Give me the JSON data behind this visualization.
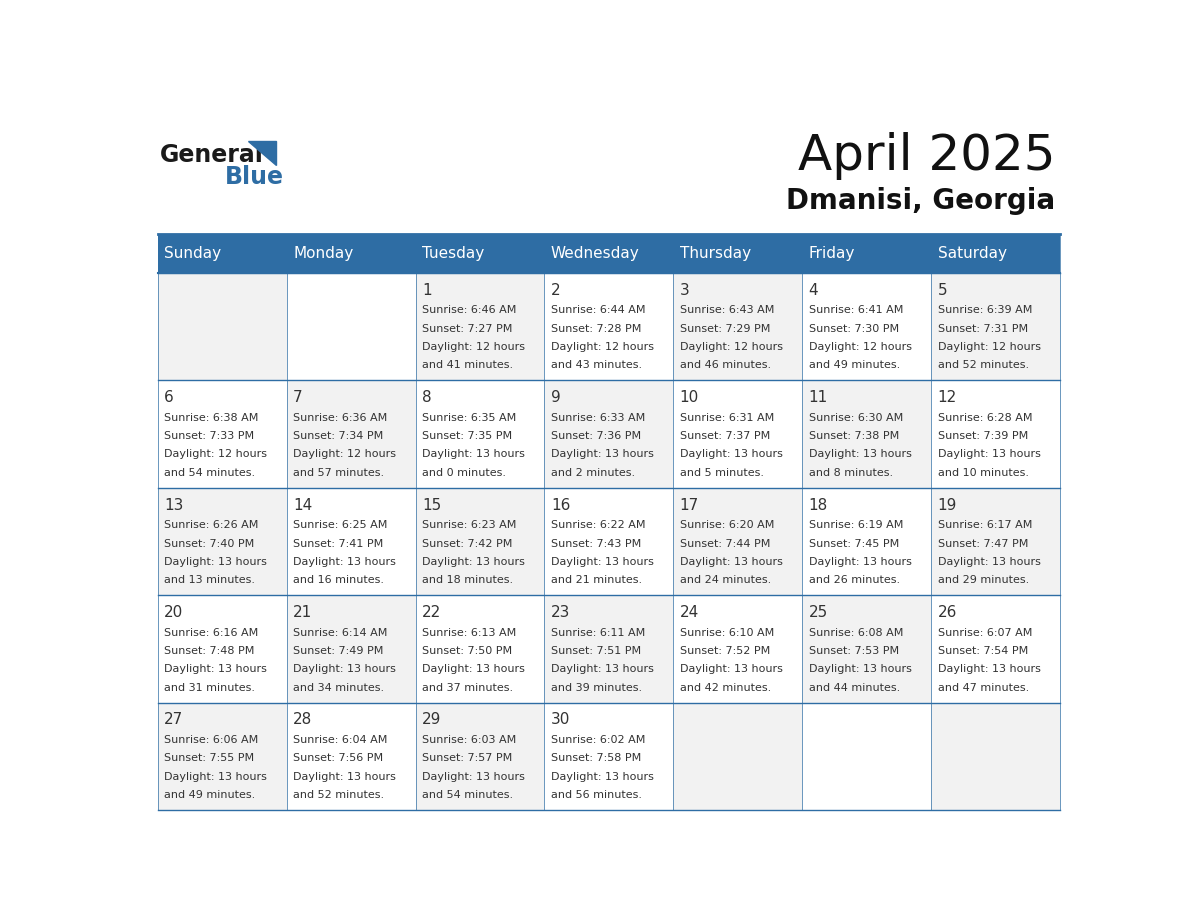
{
  "title": "April 2025",
  "subtitle": "Dmanisi, Georgia",
  "header_color": "#2E6DA4",
  "header_text_color": "#FFFFFF",
  "background_color": "#FFFFFF",
  "grid_line_color": "#2E6DA4",
  "day_headers": [
    "Sunday",
    "Monday",
    "Tuesday",
    "Wednesday",
    "Thursday",
    "Friday",
    "Saturday"
  ],
  "text_color": "#333333",
  "day_number_color": "#333333",
  "cell_bg_even": "#F2F2F2",
  "cell_bg_odd": "#FFFFFF",
  "days": [
    {
      "date": 1,
      "col": 2,
      "row": 0,
      "sunrise": "6:46 AM",
      "sunset": "7:27 PM",
      "daylight_line1": "Daylight: 12 hours",
      "daylight_line2": "and 41 minutes."
    },
    {
      "date": 2,
      "col": 3,
      "row": 0,
      "sunrise": "6:44 AM",
      "sunset": "7:28 PM",
      "daylight_line1": "Daylight: 12 hours",
      "daylight_line2": "and 43 minutes."
    },
    {
      "date": 3,
      "col": 4,
      "row": 0,
      "sunrise": "6:43 AM",
      "sunset": "7:29 PM",
      "daylight_line1": "Daylight: 12 hours",
      "daylight_line2": "and 46 minutes."
    },
    {
      "date": 4,
      "col": 5,
      "row": 0,
      "sunrise": "6:41 AM",
      "sunset": "7:30 PM",
      "daylight_line1": "Daylight: 12 hours",
      "daylight_line2": "and 49 minutes."
    },
    {
      "date": 5,
      "col": 6,
      "row": 0,
      "sunrise": "6:39 AM",
      "sunset": "7:31 PM",
      "daylight_line1": "Daylight: 12 hours",
      "daylight_line2": "and 52 minutes."
    },
    {
      "date": 6,
      "col": 0,
      "row": 1,
      "sunrise": "6:38 AM",
      "sunset": "7:33 PM",
      "daylight_line1": "Daylight: 12 hours",
      "daylight_line2": "and 54 minutes."
    },
    {
      "date": 7,
      "col": 1,
      "row": 1,
      "sunrise": "6:36 AM",
      "sunset": "7:34 PM",
      "daylight_line1": "Daylight: 12 hours",
      "daylight_line2": "and 57 minutes."
    },
    {
      "date": 8,
      "col": 2,
      "row": 1,
      "sunrise": "6:35 AM",
      "sunset": "7:35 PM",
      "daylight_line1": "Daylight: 13 hours",
      "daylight_line2": "and 0 minutes."
    },
    {
      "date": 9,
      "col": 3,
      "row": 1,
      "sunrise": "6:33 AM",
      "sunset": "7:36 PM",
      "daylight_line1": "Daylight: 13 hours",
      "daylight_line2": "and 2 minutes."
    },
    {
      "date": 10,
      "col": 4,
      "row": 1,
      "sunrise": "6:31 AM",
      "sunset": "7:37 PM",
      "daylight_line1": "Daylight: 13 hours",
      "daylight_line2": "and 5 minutes."
    },
    {
      "date": 11,
      "col": 5,
      "row": 1,
      "sunrise": "6:30 AM",
      "sunset": "7:38 PM",
      "daylight_line1": "Daylight: 13 hours",
      "daylight_line2": "and 8 minutes."
    },
    {
      "date": 12,
      "col": 6,
      "row": 1,
      "sunrise": "6:28 AM",
      "sunset": "7:39 PM",
      "daylight_line1": "Daylight: 13 hours",
      "daylight_line2": "and 10 minutes."
    },
    {
      "date": 13,
      "col": 0,
      "row": 2,
      "sunrise": "6:26 AM",
      "sunset": "7:40 PM",
      "daylight_line1": "Daylight: 13 hours",
      "daylight_line2": "and 13 minutes."
    },
    {
      "date": 14,
      "col": 1,
      "row": 2,
      "sunrise": "6:25 AM",
      "sunset": "7:41 PM",
      "daylight_line1": "Daylight: 13 hours",
      "daylight_line2": "and 16 minutes."
    },
    {
      "date": 15,
      "col": 2,
      "row": 2,
      "sunrise": "6:23 AM",
      "sunset": "7:42 PM",
      "daylight_line1": "Daylight: 13 hours",
      "daylight_line2": "and 18 minutes."
    },
    {
      "date": 16,
      "col": 3,
      "row": 2,
      "sunrise": "6:22 AM",
      "sunset": "7:43 PM",
      "daylight_line1": "Daylight: 13 hours",
      "daylight_line2": "and 21 minutes."
    },
    {
      "date": 17,
      "col": 4,
      "row": 2,
      "sunrise": "6:20 AM",
      "sunset": "7:44 PM",
      "daylight_line1": "Daylight: 13 hours",
      "daylight_line2": "and 24 minutes."
    },
    {
      "date": 18,
      "col": 5,
      "row": 2,
      "sunrise": "6:19 AM",
      "sunset": "7:45 PM",
      "daylight_line1": "Daylight: 13 hours",
      "daylight_line2": "and 26 minutes."
    },
    {
      "date": 19,
      "col": 6,
      "row": 2,
      "sunrise": "6:17 AM",
      "sunset": "7:47 PM",
      "daylight_line1": "Daylight: 13 hours",
      "daylight_line2": "and 29 minutes."
    },
    {
      "date": 20,
      "col": 0,
      "row": 3,
      "sunrise": "6:16 AM",
      "sunset": "7:48 PM",
      "daylight_line1": "Daylight: 13 hours",
      "daylight_line2": "and 31 minutes."
    },
    {
      "date": 21,
      "col": 1,
      "row": 3,
      "sunrise": "6:14 AM",
      "sunset": "7:49 PM",
      "daylight_line1": "Daylight: 13 hours",
      "daylight_line2": "and 34 minutes."
    },
    {
      "date": 22,
      "col": 2,
      "row": 3,
      "sunrise": "6:13 AM",
      "sunset": "7:50 PM",
      "daylight_line1": "Daylight: 13 hours",
      "daylight_line2": "and 37 minutes."
    },
    {
      "date": 23,
      "col": 3,
      "row": 3,
      "sunrise": "6:11 AM",
      "sunset": "7:51 PM",
      "daylight_line1": "Daylight: 13 hours",
      "daylight_line2": "and 39 minutes."
    },
    {
      "date": 24,
      "col": 4,
      "row": 3,
      "sunrise": "6:10 AM",
      "sunset": "7:52 PM",
      "daylight_line1": "Daylight: 13 hours",
      "daylight_line2": "and 42 minutes."
    },
    {
      "date": 25,
      "col": 5,
      "row": 3,
      "sunrise": "6:08 AM",
      "sunset": "7:53 PM",
      "daylight_line1": "Daylight: 13 hours",
      "daylight_line2": "and 44 minutes."
    },
    {
      "date": 26,
      "col": 6,
      "row": 3,
      "sunrise": "6:07 AM",
      "sunset": "7:54 PM",
      "daylight_line1": "Daylight: 13 hours",
      "daylight_line2": "and 47 minutes."
    },
    {
      "date": 27,
      "col": 0,
      "row": 4,
      "sunrise": "6:06 AM",
      "sunset": "7:55 PM",
      "daylight_line1": "Daylight: 13 hours",
      "daylight_line2": "and 49 minutes."
    },
    {
      "date": 28,
      "col": 1,
      "row": 4,
      "sunrise": "6:04 AM",
      "sunset": "7:56 PM",
      "daylight_line1": "Daylight: 13 hours",
      "daylight_line2": "and 52 minutes."
    },
    {
      "date": 29,
      "col": 2,
      "row": 4,
      "sunrise": "6:03 AM",
      "sunset": "7:57 PM",
      "daylight_line1": "Daylight: 13 hours",
      "daylight_line2": "and 54 minutes."
    },
    {
      "date": 30,
      "col": 3,
      "row": 4,
      "sunrise": "6:02 AM",
      "sunset": "7:58 PM",
      "daylight_line1": "Daylight: 13 hours",
      "daylight_line2": "and 56 minutes."
    }
  ]
}
